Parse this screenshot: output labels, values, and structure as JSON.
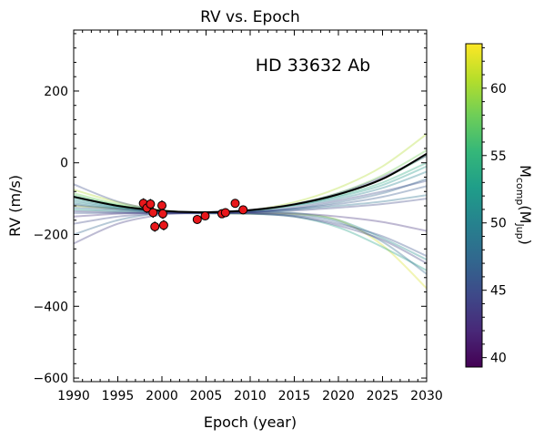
{
  "chart_data": {
    "type": "line",
    "title": "RV vs. Epoch",
    "annotation": "HD 33632 Ab",
    "xlabel": "Epoch (year)",
    "ylabel": "RV (m/s)",
    "xlim": [
      1990,
      2030
    ],
    "ylim": [
      -610,
      370
    ],
    "xticks": [
      1990,
      1995,
      2000,
      2005,
      2010,
      2015,
      2020,
      2025,
      2030
    ],
    "yticks": [
      -600,
      -400,
      -200,
      0,
      200
    ],
    "ytick_labels": [
      "−600",
      "−400",
      "−200",
      "0",
      "200"
    ],
    "best_fit": {
      "color": "#000000",
      "x": [
        1990,
        1995,
        2000,
        2005,
        2010,
        2015,
        2020,
        2025,
        2030
      ],
      "y": [
        -95,
        -120,
        -134,
        -138,
        -132,
        -116,
        -88,
        -45,
        25
      ]
    },
    "data_points": [
      {
        "x": 1997.9,
        "y": -113,
        "err": 14
      },
      {
        "x": 1998.3,
        "y": -126,
        "err": 14
      },
      {
        "x": 1998.7,
        "y": -115,
        "err": 14
      },
      {
        "x": 1999.0,
        "y": -139,
        "err": 14
      },
      {
        "x": 1999.2,
        "y": -178,
        "err": 14
      },
      {
        "x": 2000.0,
        "y": -119,
        "err": 14
      },
      {
        "x": 2000.1,
        "y": -142,
        "err": 14
      },
      {
        "x": 2000.2,
        "y": -174,
        "err": 14
      },
      {
        "x": 2004.0,
        "y": -158,
        "err": 12
      },
      {
        "x": 2004.9,
        "y": -148,
        "err": 12
      },
      {
        "x": 2006.8,
        "y": -142,
        "err": 12
      },
      {
        "x": 2007.2,
        "y": -139,
        "err": 12
      },
      {
        "x": 2008.3,
        "y": -113,
        "err": 12
      },
      {
        "x": 2009.2,
        "y": -131,
        "err": 12
      }
    ],
    "orbit_samples": {
      "note_values": "mass in M_Jup mapped through colorbar",
      "x": [
        1990,
        1995,
        2000,
        2005,
        2010,
        2015,
        2020,
        2025,
        2030
      ],
      "series": [
        {
          "mass": 62.0,
          "y": [
            -120,
            -128,
            -135,
            -140,
            -142,
            -143,
            -160,
            -230,
            -350
          ]
        },
        {
          "mass": 60.5,
          "y": [
            -75,
            -110,
            -132,
            -140,
            -132,
            -110,
            -70,
            -10,
            80
          ]
        },
        {
          "mass": 58.0,
          "y": [
            -85,
            -115,
            -133,
            -139,
            -134,
            -116,
            -84,
            -35,
            35
          ]
        },
        {
          "mass": 56.0,
          "y": [
            -90,
            -118,
            -134,
            -139,
            -133,
            -116,
            -88,
            -45,
            20
          ]
        },
        {
          "mass": 54.0,
          "y": [
            -95,
            -120,
            -134,
            -138,
            -132,
            -117,
            -92,
            -55,
            0
          ]
        },
        {
          "mass": 53.0,
          "y": [
            -130,
            -135,
            -139,
            -141,
            -142,
            -150,
            -180,
            -235,
            -300
          ]
        },
        {
          "mass": 52.0,
          "y": [
            -100,
            -122,
            -135,
            -138,
            -132,
            -118,
            -95,
            -62,
            -10
          ]
        },
        {
          "mass": 51.0,
          "y": [
            -110,
            -126,
            -136,
            -139,
            -137,
            -140,
            -160,
            -210,
            -270
          ]
        },
        {
          "mass": 50.0,
          "y": [
            -105,
            -124,
            -135,
            -138,
            -133,
            -120,
            -100,
            -70,
            -25
          ]
        },
        {
          "mass": 48.5,
          "y": [
            -115,
            -128,
            -136,
            -139,
            -137,
            -131,
            -120,
            -108,
            -90
          ]
        },
        {
          "mass": 47.5,
          "y": [
            -125,
            -132,
            -138,
            -140,
            -140,
            -145,
            -165,
            -220,
            -310
          ]
        },
        {
          "mass": 47.0,
          "y": [
            -200,
            -160,
            -140,
            -138,
            -136,
            -128,
            -110,
            -85,
            -45
          ]
        },
        {
          "mass": 46.0,
          "y": [
            -118,
            -129,
            -137,
            -139,
            -136,
            -128,
            -115,
            -95,
            -65
          ]
        },
        {
          "mass": 45.5,
          "y": [
            -140,
            -140,
            -141,
            -141,
            -142,
            -148,
            -170,
            -205,
            -260
          ]
        },
        {
          "mass": 45.0,
          "y": [
            -60,
            -108,
            -133,
            -140,
            -138,
            -125,
            -105,
            -80,
            -50
          ]
        },
        {
          "mass": 44.5,
          "y": [
            -170,
            -150,
            -141,
            -139,
            -137,
            -133,
            -125,
            -115,
            -100
          ]
        },
        {
          "mass": 44.0,
          "y": [
            -135,
            -138,
            -140,
            -140,
            -141,
            -150,
            -175,
            -215,
            -280
          ]
        },
        {
          "mass": 43.5,
          "y": [
            -225,
            -170,
            -145,
            -138,
            -131,
            -115,
            -85,
            -40,
            20
          ]
        },
        {
          "mass": 43.0,
          "y": [
            -150,
            -142,
            -139,
            -139,
            -139,
            -141,
            -150,
            -165,
            -190
          ]
        }
      ]
    },
    "colorbar": {
      "label_main": "M",
      "label_sub1": "comp",
      "label_mid": "(M",
      "label_sub2": "Jup",
      "label_end": ")",
      "range": [
        39.3,
        63.3
      ],
      "ticks": [
        40,
        45,
        50,
        55,
        60
      ],
      "colormap": [
        "#440154",
        "#482878",
        "#3e4989",
        "#31688e",
        "#26828e",
        "#1f9e89",
        "#35b779",
        "#6ece58",
        "#b5de2b",
        "#fde725"
      ]
    }
  }
}
